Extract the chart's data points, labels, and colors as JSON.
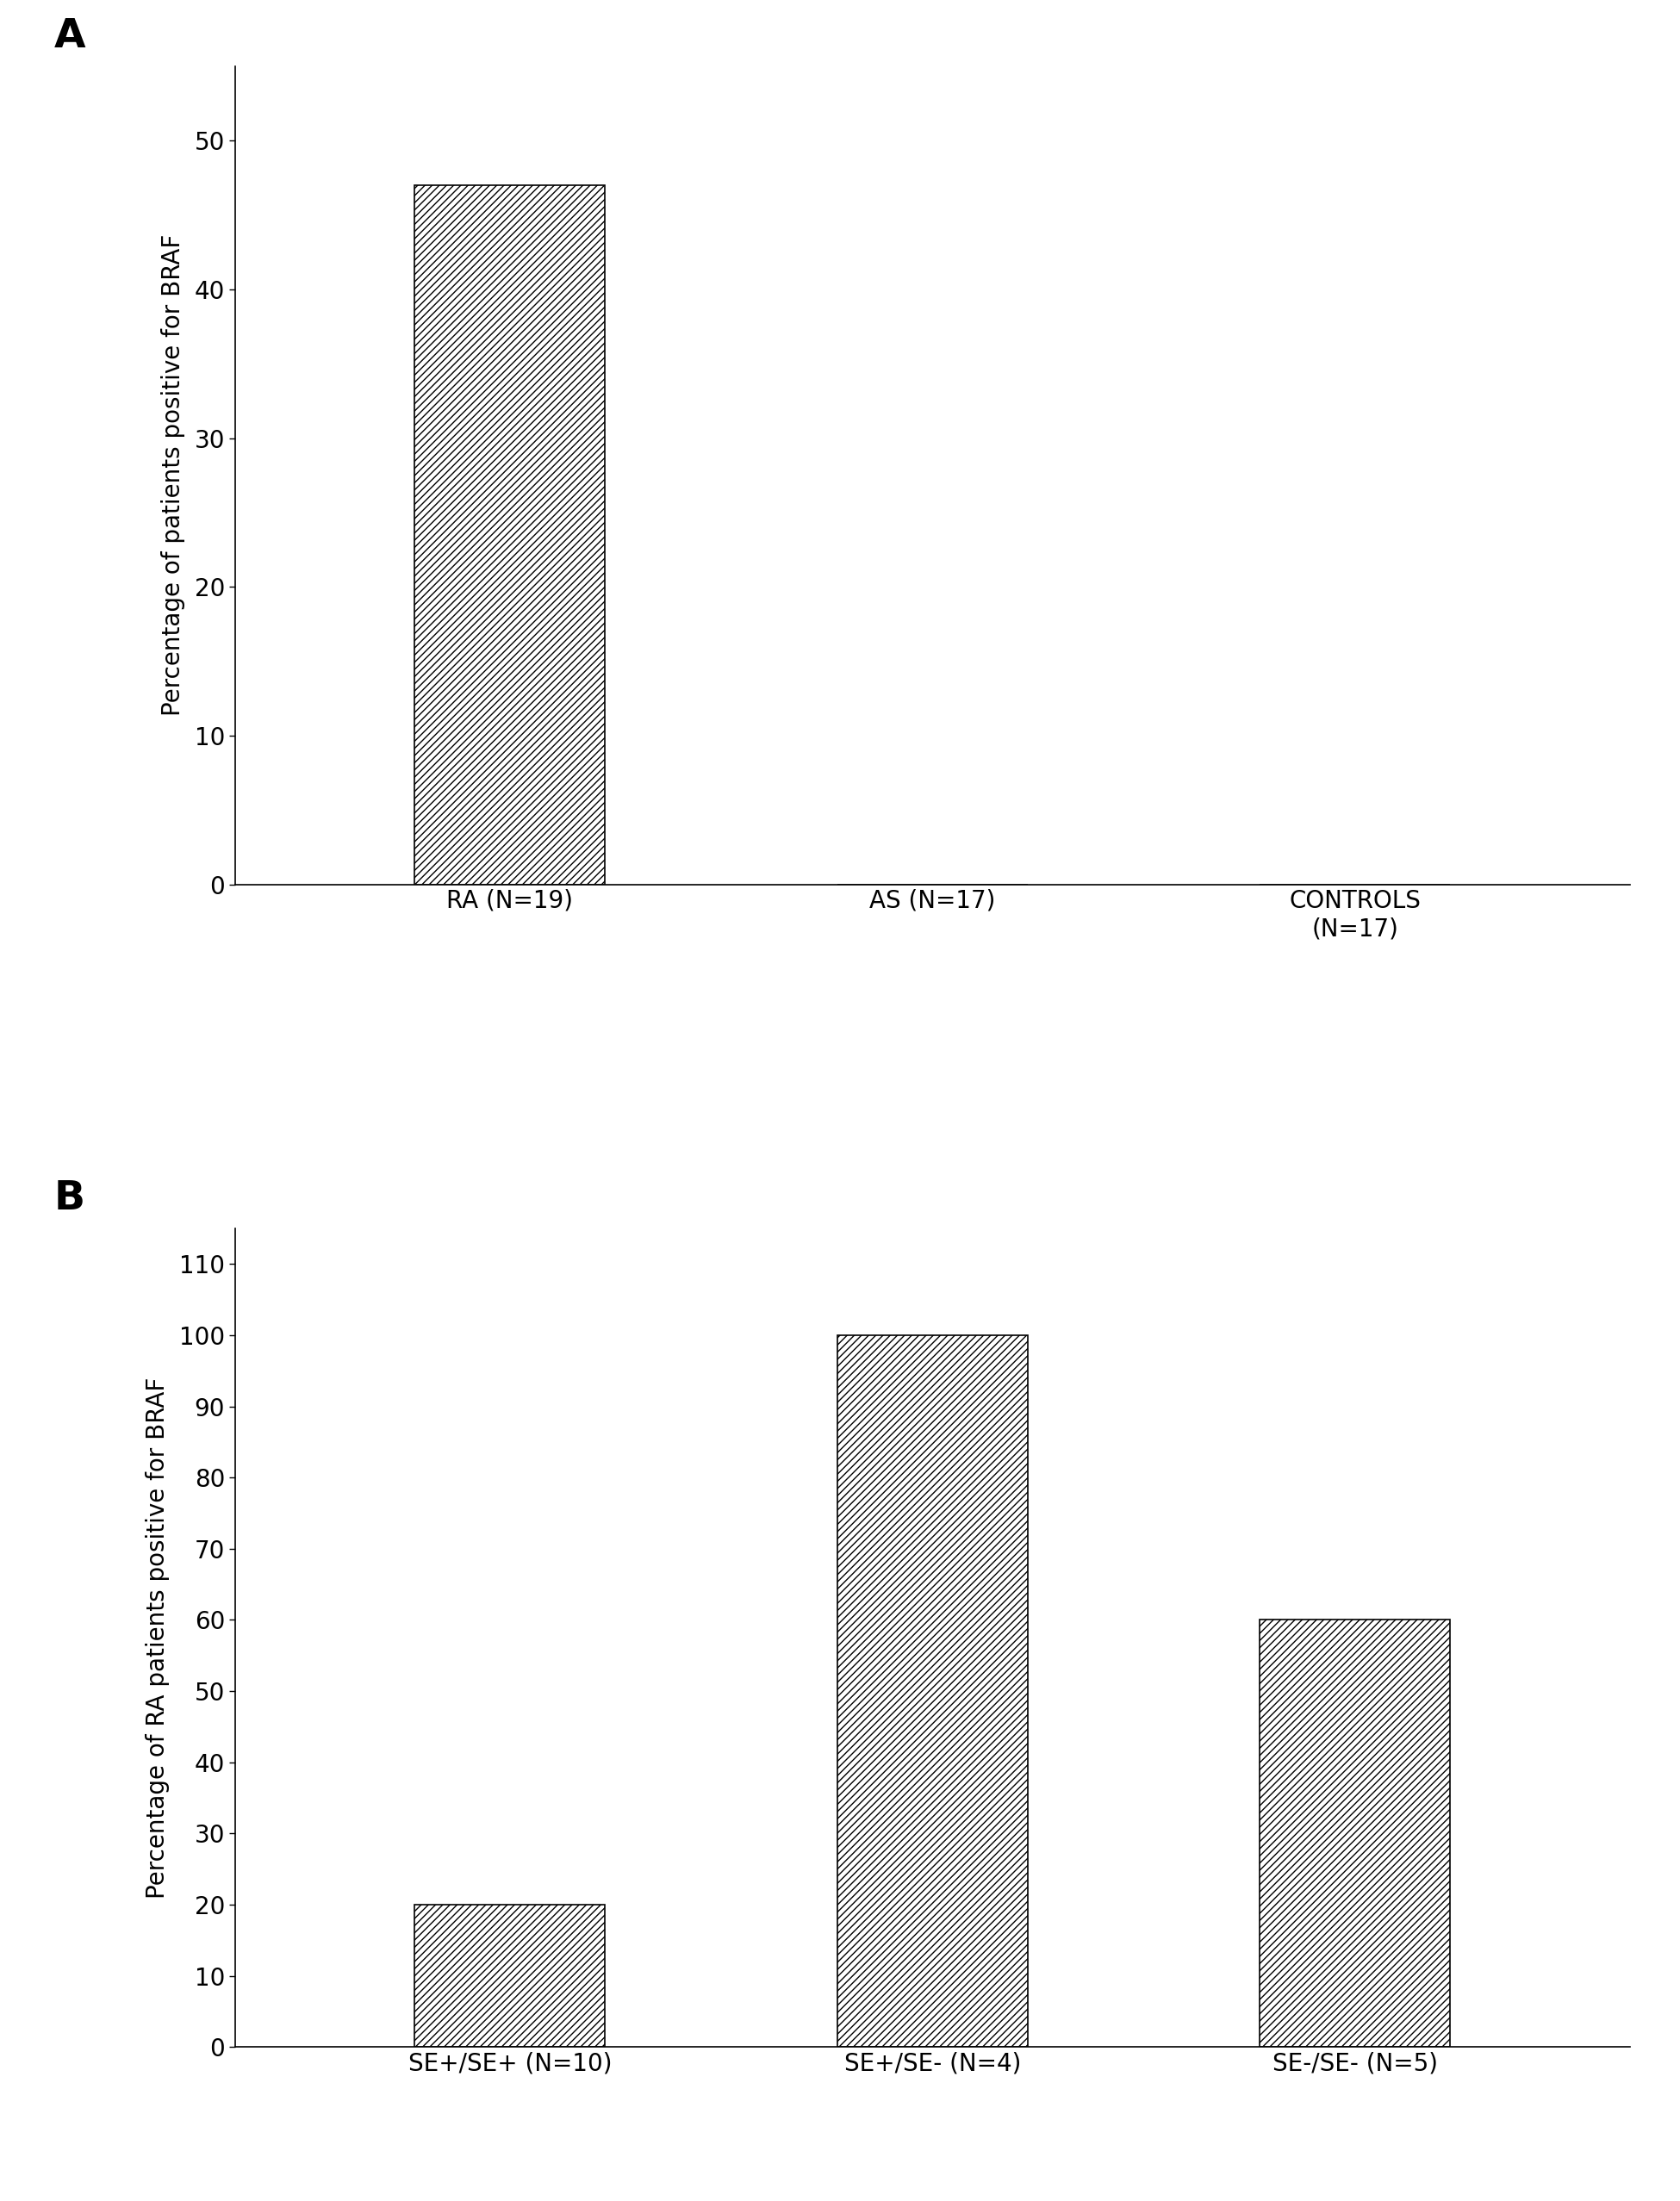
{
  "panel_A": {
    "categories": [
      "RA (N=19)",
      "AS (N=17)",
      "CONTROLS\n(N=17)"
    ],
    "values": [
      47.0,
      0,
      0
    ],
    "ylabel": "Percentage of patients positive for BRAF",
    "ylim": [
      0,
      55
    ],
    "yticks": [
      0,
      10,
      20,
      30,
      40,
      50
    ],
    "label": "A"
  },
  "panel_B": {
    "categories": [
      "SE+/SE+ (N=10)",
      "SE+/SE- (N=4)",
      "SE-/SE- (N=5)"
    ],
    "values": [
      20,
      100,
      60
    ],
    "ylabel": "Percentage of RA patients positive for BRAF",
    "ylim": [
      0,
      115
    ],
    "yticks": [
      0,
      10,
      20,
      30,
      40,
      50,
      60,
      70,
      80,
      90,
      100,
      110
    ],
    "label": "B"
  },
  "bar_color": "#ffffff",
  "bar_hatch": "////",
  "bar_width": 0.45,
  "background_color": "#ffffff",
  "tick_fontsize": 20,
  "label_fontsize": 20,
  "panel_label_fontsize": 34
}
